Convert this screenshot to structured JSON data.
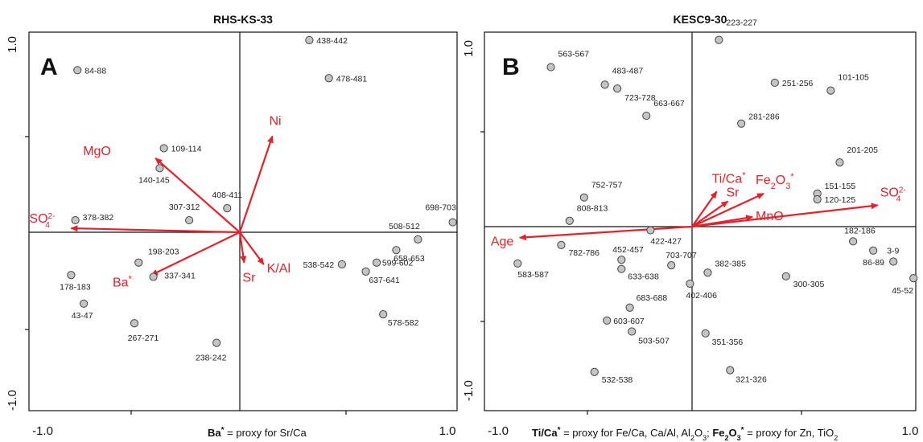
{
  "colors": {
    "arrow": "#e8202a",
    "point_fill": "#c4c4c4",
    "point_stroke": "#444444",
    "frame": "#111111"
  },
  "footnotes": {
    "left": {
      "a_bold": "Ba",
      "a_sup": "*",
      "a_rest": " = proxy for Sr/Ca"
    },
    "right": {
      "t1_bold": "Ti/Ca",
      "t1_sup": "*",
      "t2": " = proxy for Fe/Ca, Ca/Al, Al",
      "t2_sub": "2",
      "t2b": "O",
      "t2b_sub": "3",
      "t3": "; ",
      "t4_bold": "Fe",
      "t4_sub": "2",
      "t4b_bold": "O",
      "t4b_sub": "3",
      "t4_sup": "*",
      "t5": " = proxy for Zn, TiO",
      "t5_sub": "2"
    }
  },
  "chart_data": [
    {
      "type": "scatter",
      "panel_letter": "A",
      "title": "RHS-KS-33",
      "xlim": [
        -1.0,
        1.0
      ],
      "ylim": [
        -1.0,
        1.0
      ],
      "x_tick_labels": [
        "-1.0",
        "1.0"
      ],
      "y_tick_labels": [
        "1.0",
        "-1.0"
      ],
      "points": [
        {
          "label": "438-442",
          "x": 0.32,
          "y": 0.96
        },
        {
          "label": "478-481",
          "x": 0.41,
          "y": 0.77
        },
        {
          "label": "84-88",
          "x": -0.77,
          "y": 0.81
        },
        {
          "label": "109-114",
          "x": -0.36,
          "y": 0.42
        },
        {
          "label": "140-145",
          "x": -0.38,
          "y": 0.32
        },
        {
          "label": "408-411",
          "x": -0.06,
          "y": 0.12
        },
        {
          "label": "307-312",
          "x": -0.24,
          "y": 0.06
        },
        {
          "label": "378-382",
          "x": -0.78,
          "y": 0.06
        },
        {
          "label": "698-703",
          "x": 0.98,
          "y": 0.05
        },
        {
          "label": "508-512",
          "x": 0.82,
          "y": -0.04
        },
        {
          "label": "658-653",
          "x": 0.72,
          "y": -0.1
        },
        {
          "label": "599-602",
          "x": 0.63,
          "y": -0.17
        },
        {
          "label": "538-542",
          "x": 0.47,
          "y": -0.18
        },
        {
          "label": "637-641",
          "x": 0.58,
          "y": -0.22
        },
        {
          "label": "198-203",
          "x": -0.48,
          "y": -0.17
        },
        {
          "label": "337-341",
          "x": -0.41,
          "y": -0.25
        },
        {
          "label": "178-183",
          "x": -0.8,
          "y": -0.24
        },
        {
          "label": "43-47",
          "x": -0.74,
          "y": -0.4
        },
        {
          "label": "267-271",
          "x": -0.5,
          "y": -0.51
        },
        {
          "label": "578-582",
          "x": 0.66,
          "y": -0.46
        },
        {
          "label": "238-242",
          "x": -0.11,
          "y": -0.62
        }
      ],
      "arrows": [
        {
          "label": "Ni",
          "x": 0.15,
          "y": 0.48
        },
        {
          "label": "MgO",
          "x": -0.4,
          "y": 0.37
        },
        {
          "label": "SO4",
          "sub": "4",
          "sup": "2-",
          "x": -0.8,
          "y": 0.02
        },
        {
          "label": "Ba",
          "sup": "*",
          "x": -0.42,
          "y": -0.24
        },
        {
          "label": "Sr",
          "x": 0.02,
          "y": -0.17
        },
        {
          "label": "K/Al",
          "x": 0.11,
          "y": -0.18
        }
      ]
    },
    {
      "type": "scatter",
      "panel_letter": "B",
      "title": "KESC9-30",
      "xlim": [
        -1.0,
        1.0
      ],
      "ylim": [
        -1.0,
        1.0
      ],
      "x_tick_labels": [
        "-1.0",
        "1.0"
      ],
      "y_tick_labels": [
        "1.0",
        "-1.0"
      ],
      "points": [
        {
          "label": "223-227",
          "x": 0.12,
          "y": 0.96
        },
        {
          "label": "563-567",
          "x": -0.68,
          "y": 0.82
        },
        {
          "label": "483-487",
          "x": -0.42,
          "y": 0.73
        },
        {
          "label": "723-728",
          "x": -0.36,
          "y": 0.71
        },
        {
          "label": "251-256",
          "x": 0.37,
          "y": 0.74
        },
        {
          "label": "101-105",
          "x": 0.62,
          "y": 0.7
        },
        {
          "label": "663-667",
          "x": -0.22,
          "y": 0.57
        },
        {
          "label": "281-286",
          "x": 0.22,
          "y": 0.53
        },
        {
          "label": "201-205",
          "x": 0.66,
          "y": 0.33
        },
        {
          "label": "151-155",
          "x": 0.56,
          "y": 0.17
        },
        {
          "label": "120-125",
          "x": 0.56,
          "y": 0.14
        },
        {
          "label": "752-757",
          "x": -0.52,
          "y": 0.15
        },
        {
          "label": "808-813",
          "x": -0.59,
          "y": 0.03
        },
        {
          "label": "422-427",
          "x": -0.2,
          "y": -0.02
        },
        {
          "label": "182-186",
          "x": 0.72,
          "y": -0.08
        },
        {
          "label": "782-786",
          "x": -0.63,
          "y": -0.1
        },
        {
          "label": "86-89",
          "x": 0.81,
          "y": -0.13
        },
        {
          "label": "3-9",
          "x": 0.9,
          "y": -0.19
        },
        {
          "label": "583-587",
          "x": -0.84,
          "y": -0.2
        },
        {
          "label": "452-457",
          "x": -0.34,
          "y": -0.18
        },
        {
          "label": "703-707",
          "x": -0.1,
          "y": -0.21
        },
        {
          "label": "633-638",
          "x": -0.34,
          "y": -0.23
        },
        {
          "label": "382-385",
          "x": 0.07,
          "y": -0.25
        },
        {
          "label": "300-305",
          "x": 0.42,
          "y": -0.27
        },
        {
          "label": "45-52",
          "x": 0.99,
          "y": -0.28
        },
        {
          "label": "402-406",
          "x": -0.01,
          "y": -0.31
        },
        {
          "label": "683-688",
          "x": -0.3,
          "y": -0.44
        },
        {
          "label": "603-607",
          "x": -0.41,
          "y": -0.51
        },
        {
          "label": "503-507",
          "x": -0.29,
          "y": -0.57
        },
        {
          "label": "351-356",
          "x": 0.06,
          "y": -0.58
        },
        {
          "label": "321-326",
          "x": 0.17,
          "y": -0.78
        },
        {
          "label": "532-538",
          "x": -0.47,
          "y": -0.79
        }
      ],
      "arrows": [
        {
          "label": "Age",
          "x": -0.83,
          "y": -0.06
        },
        {
          "label": "Ti/Ca",
          "sup": "*",
          "x": 0.11,
          "y": 0.18
        },
        {
          "label": "Sr",
          "x": 0.16,
          "y": 0.13
        },
        {
          "label": "Fe2O3",
          "parts": [
            "Fe",
            "2",
            "O",
            "3",
            "*"
          ],
          "x": 0.32,
          "y": 0.17
        },
        {
          "label": "MnO",
          "x": 0.27,
          "y": 0.05
        },
        {
          "label": "SO4",
          "sub": "4",
          "sup": "2-",
          "x": 0.83,
          "y": 0.11
        }
      ]
    }
  ]
}
